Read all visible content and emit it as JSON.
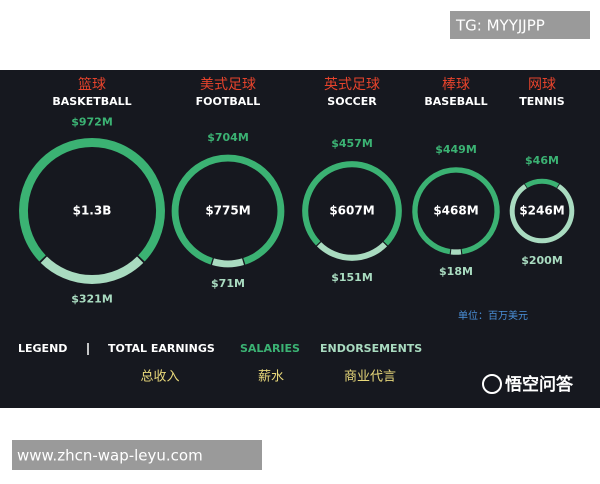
{
  "watermark": "TG: MYYJJPP",
  "footer_url": "www.zhcn-wap-leyu.com",
  "chart_data": {
    "type": "donut",
    "categories": [
      "BASKETBALL",
      "FOOTBALL",
      "SOCCER",
      "BASEBALL",
      "TENNIS"
    ],
    "categories_cn": [
      "篮球",
      "美式足球",
      "英式足球",
      "棒球",
      "网球"
    ],
    "series": [
      {
        "name": "SALARIES",
        "name_cn": "薪水",
        "color": "#3bb273",
        "values": [
          972,
          704,
          457,
          449,
          46
        ],
        "value_labels": [
          "$972M",
          "$704M",
          "$457M",
          "$449M",
          "$46M"
        ]
      },
      {
        "name": "ENDORSEMENTS",
        "name_cn": "商业代言",
        "color": "#a9dbc0",
        "values": [
          321,
          71,
          151,
          18,
          200
        ],
        "value_labels": [
          "$321M",
          "$71M",
          "$151M",
          "$18M",
          "$200M"
        ]
      }
    ],
    "total_name": "TOTAL EARNINGS",
    "total_name_cn": "总收入",
    "totals": [
      1300,
      775,
      607,
      468,
      246
    ],
    "total_labels": [
      "$1.3B",
      "$775M",
      "$607M",
      "$468M",
      "$246M"
    ],
    "legend_title": "LEGEND",
    "unit_note": "单位：百万美元",
    "logo": "悟空问答"
  }
}
